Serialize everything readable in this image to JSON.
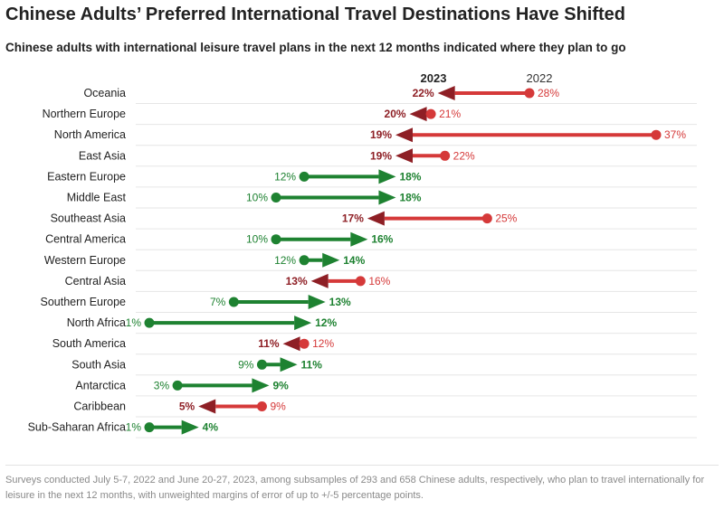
{
  "title": "Chinese Adults’ Preferred International Travel Destinations Have Shifted",
  "subtitle": "Chinese adults with international leisure travel plans in the next 12 months indicated where they plan to go",
  "footnote": "Surveys conducted July 5-7, 2022 and June 20-27, 2023, among subsamples of 293 and 658 Chinese adults, respectively, who plan to travel internationally for leisure in the next 12 months, with unweighted margins of error of up to +/-5 percentage points.",
  "colors": {
    "increase": "#1e8231",
    "decrease_dot": "#d53939",
    "decrease_arrow": "#8e1f25",
    "label_2022_up": "#1e8231",
    "label_2022_down": "#d53939",
    "gridline": "#e6e6e6"
  },
  "chart_data": {
    "type": "dumbbell-arrow",
    "title": "Chinese Adults’ Preferred International Travel Destinations Have Shifted",
    "series": [
      {
        "name": "2023",
        "role": "arrow head"
      },
      {
        "name": "2022",
        "role": "dot"
      }
    ],
    "unit": "%",
    "xlim": [
      1,
      37
    ],
    "categories": [
      "Oceania",
      "Northern Europe",
      "North America",
      "East Asia",
      "Eastern Europe",
      "Middle East",
      "Southeast Asia",
      "Central America",
      "Western Europe",
      "Central Asia",
      "Southern Europe",
      "North Africa",
      "South America",
      "South Asia",
      "Antarctica",
      "Caribbean",
      "Sub-Saharan Africa"
    ],
    "values_2022": [
      28,
      21,
      37,
      22,
      12,
      10,
      25,
      10,
      12,
      16,
      7,
      1,
      12,
      9,
      3,
      9,
      1
    ],
    "values_2023": [
      22,
      20,
      19,
      19,
      18,
      18,
      17,
      16,
      14,
      13,
      13,
      12,
      11,
      11,
      9,
      5,
      4
    ],
    "labels_2022": [
      "28%",
      "21%",
      "37%",
      "22%",
      "12%",
      "10%",
      "25%",
      "10%",
      "12%",
      "16%",
      "7%",
      "1%",
      "12%",
      "9%",
      "3%",
      "9%",
      "1%"
    ],
    "labels_2023": [
      "22%",
      "20%",
      "19%",
      "19%",
      "18%",
      "18%",
      "17%",
      "16%",
      "14%",
      "13%",
      "13%",
      "12%",
      "11%",
      "11%",
      "9%",
      "5%",
      "4%"
    ]
  }
}
